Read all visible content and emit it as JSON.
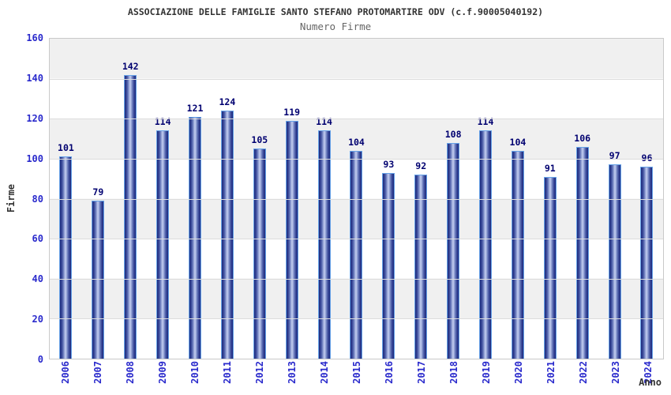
{
  "header": {
    "title": "ASSOCIAZIONE DELLE FAMIGLIE SANTO STEFANO PROTOMARTIRE ODV (c.f.90005040192)",
    "subtitle": "Numero Firme"
  },
  "chart_data": {
    "type": "bar",
    "title": "ASSOCIAZIONE DELLE FAMIGLIE SANTO STEFANO PROTOMARTIRE ODV (c.f.90005040192)",
    "subtitle": "Numero Firme",
    "xlabel": "Anno",
    "ylabel": "Firme",
    "categories": [
      "2006",
      "2007",
      "2008",
      "2009",
      "2010",
      "2011",
      "2012",
      "2013",
      "2014",
      "2015",
      "2016",
      "2017",
      "2018",
      "2019",
      "2020",
      "2021",
      "2022",
      "2023",
      "2024"
    ],
    "values": [
      101,
      79,
      142,
      114,
      121,
      124,
      105,
      119,
      114,
      104,
      93,
      92,
      108,
      114,
      104,
      91,
      106,
      97,
      96
    ],
    "ylim": [
      0,
      160
    ],
    "yticks": [
      160,
      140,
      120,
      100,
      80,
      60,
      40,
      20,
      0
    ],
    "grid": "horizontal-bands-alternating",
    "legend": "none",
    "colors": {
      "bar_edge_dark": "#1f2c7c",
      "bar_center_light": "#c6d0f2",
      "bar_border": "#66a2e8",
      "value_label": "#000070",
      "tick_label": "#2a2acc",
      "title": "#333333",
      "subtitle": "#666666",
      "band_gray": "#f0f0f0",
      "band_white": "#ffffff",
      "gridline": "#dcdcdc",
      "plot_border": "#c9c9c9"
    }
  }
}
